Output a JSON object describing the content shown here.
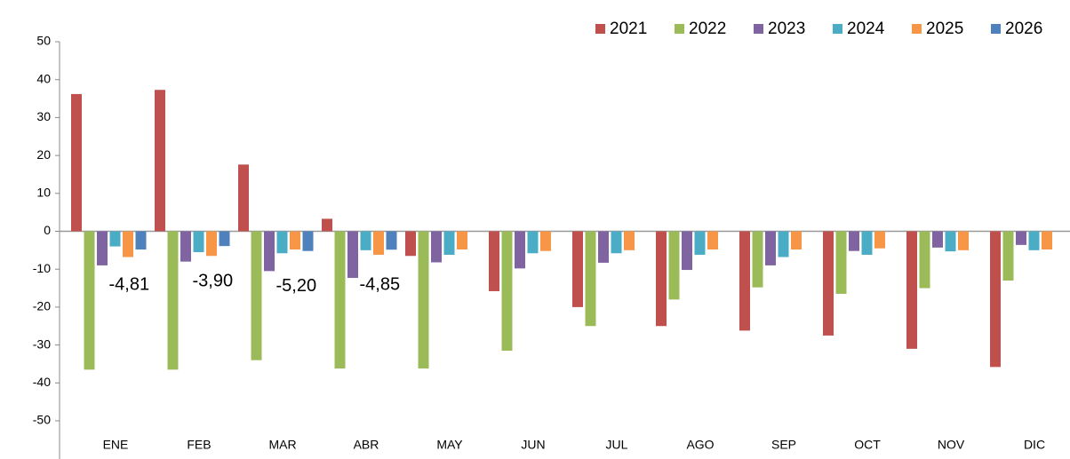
{
  "chart_data": {
    "type": "bar",
    "categories": [
      "ENE",
      "FEB",
      "MAR",
      "ABR",
      "MAY",
      "JUN",
      "JUL",
      "AGO",
      "SEP",
      "OCT",
      "NOV",
      "DIC"
    ],
    "series": [
      {
        "name": "2021",
        "color": "#c0504d",
        "values": [
          36.2,
          37.3,
          17.6,
          3.3,
          -6.5,
          -15.8,
          -20,
          -25,
          -26.2,
          -27.5,
          -31,
          -35.8
        ]
      },
      {
        "name": "2022",
        "color": "#9bbb59",
        "values": [
          -36.5,
          -36.5,
          -34,
          -36.2,
          -36.2,
          -31.5,
          -25,
          -18,
          -14.8,
          -16.5,
          -15,
          -13
        ]
      },
      {
        "name": "2023",
        "color": "#8064a2",
        "values": [
          -9,
          -8,
          -10.5,
          -12.3,
          -8.2,
          -9.8,
          -8.3,
          -10.2,
          -9,
          -5.2,
          -4.3,
          -3.6
        ]
      },
      {
        "name": "2024",
        "color": "#4bacc6",
        "values": [
          -4,
          -5.5,
          -5.8,
          -5,
          -6.2,
          -5.8,
          -5.8,
          -6.2,
          -6.8,
          -6.2,
          -5.3,
          -5
        ]
      },
      {
        "name": "2025",
        "color": "#f79646",
        "values": [
          -6.8,
          -6.5,
          -4.8,
          -6.2,
          -4.8,
          -5.2,
          -5,
          -4.8,
          -4.8,
          -4.5,
          -5,
          -4.8
        ]
      },
      {
        "name": "2026",
        "color": "#4f81bd",
        "values": [
          -4.81,
          -3.9,
          -5.2,
          -4.85,
          null,
          null,
          null,
          null,
          null,
          null,
          null,
          null
        ],
        "value_labels": [
          "-4,81",
          "-3,90",
          "-5,20",
          "-4,85",
          null,
          null,
          null,
          null,
          null,
          null,
          null,
          null
        ]
      }
    ],
    "ylim": [
      -50,
      50
    ],
    "yticks": [
      -50,
      -40,
      -30,
      -20,
      -10,
      0,
      10,
      20,
      30,
      40,
      50
    ],
    "legend": "top-right"
  }
}
